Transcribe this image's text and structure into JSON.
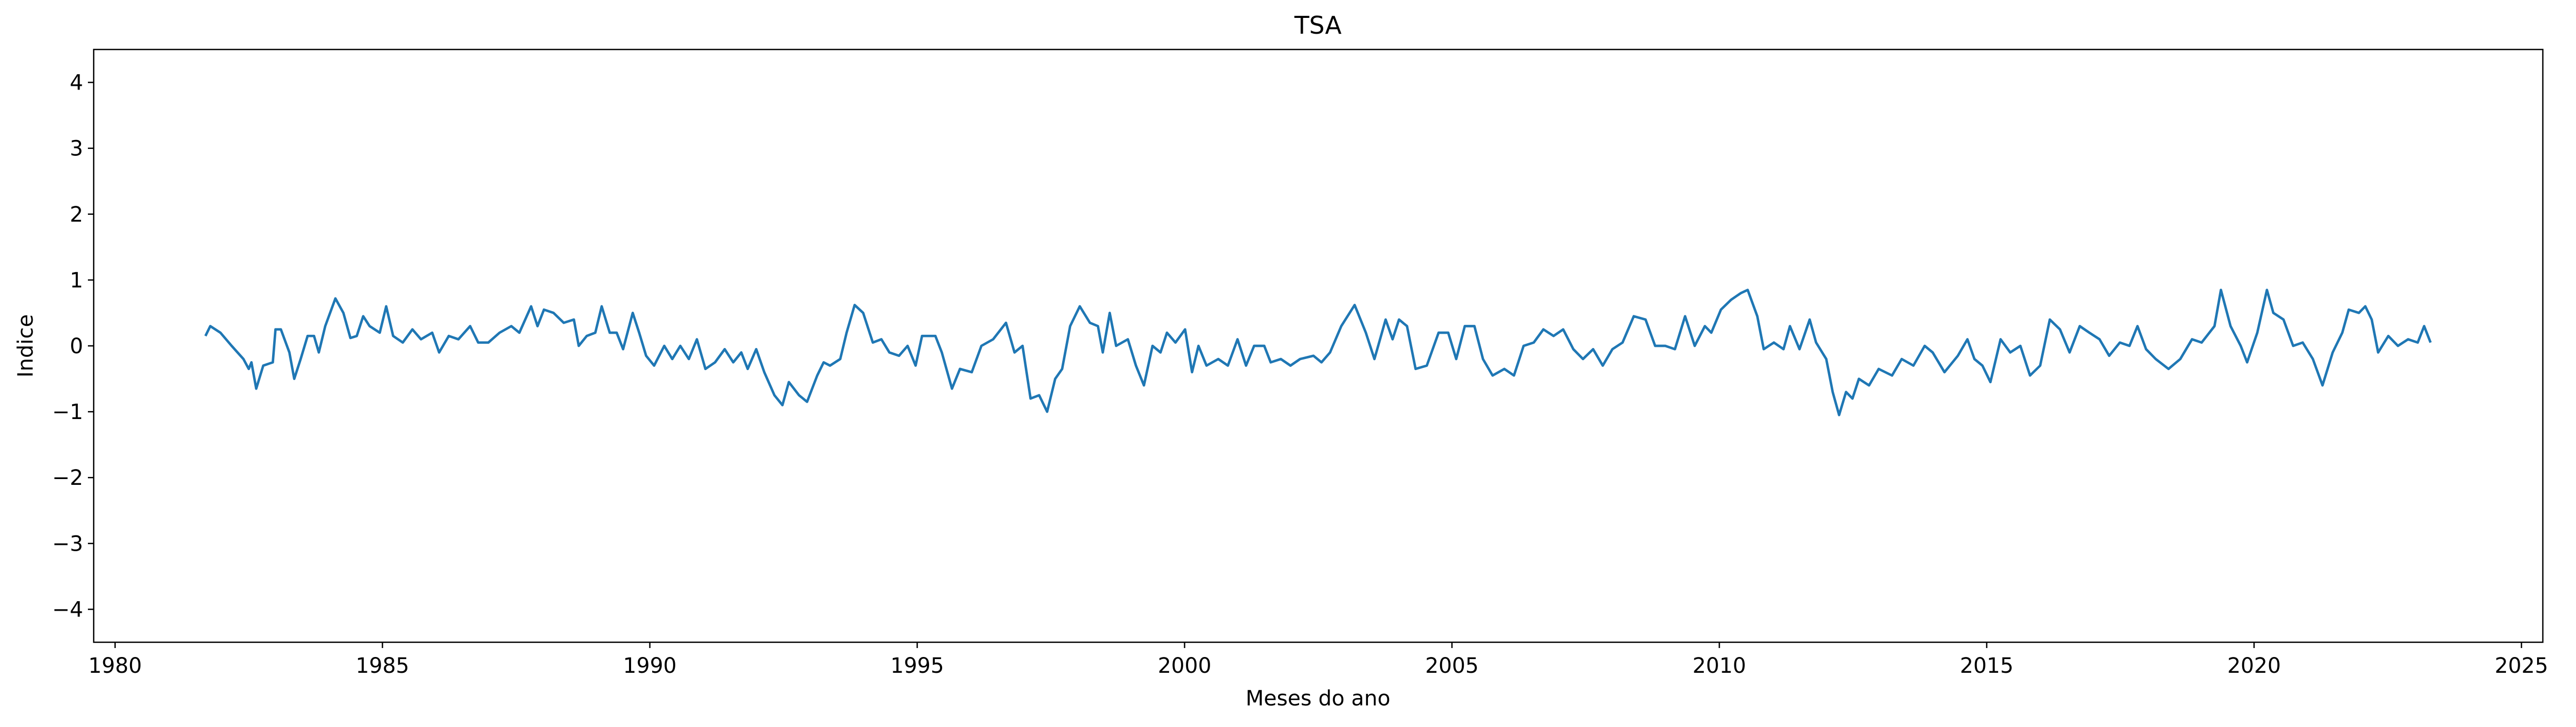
{
  "chart_data": {
    "type": "line",
    "title": "TSA",
    "xlabel": "Meses do ano",
    "ylabel": "Indice",
    "color": "#1f77b4",
    "xlim": [
      1979.6,
      2025.4
    ],
    "xticks": [
      1980,
      1985,
      1990,
      1995,
      2000,
      2005,
      2010,
      2015,
      2020,
      2025
    ],
    "ylim": [
      -4.5,
      4.5
    ],
    "yticks": [
      {
        "value": -4,
        "label": "−4"
      },
      {
        "value": -3,
        "label": "−3"
      },
      {
        "value": -2,
        "label": "−2"
      },
      {
        "value": -1,
        "label": "−1"
      },
      0,
      1,
      2,
      3,
      4
    ],
    "x": [
      1981.69,
      1981.78,
      1981.97,
      1982.18,
      1982.4,
      1982.5,
      1982.55,
      1982.64,
      1982.77,
      1982.95,
      1983.0,
      1983.1,
      1983.26,
      1983.35,
      1983.47,
      1983.6,
      1983.72,
      1983.81,
      1983.93,
      1984.12,
      1984.27,
      1984.4,
      1984.52,
      1984.64,
      1984.76,
      1984.95,
      1985.07,
      1985.2,
      1985.38,
      1985.56,
      1985.72,
      1985.93,
      1986.06,
      1986.24,
      1986.42,
      1986.64,
      1986.79,
      1986.98,
      1987.19,
      1987.41,
      1987.56,
      1987.78,
      1987.9,
      1988.02,
      1988.2,
      1988.39,
      1988.58,
      1988.67,
      1988.82,
      1988.98,
      1989.1,
      1989.25,
      1989.38,
      1989.5,
      1989.68,
      1989.8,
      1989.93,
      1990.08,
      1990.27,
      1990.42,
      1990.57,
      1990.73,
      1990.88,
      1991.04,
      1991.22,
      1991.4,
      1991.56,
      1991.71,
      1991.83,
      1991.99,
      1992.14,
      1992.33,
      1992.48,
      1992.6,
      1992.79,
      1992.94,
      1993.13,
      1993.25,
      1993.37,
      1993.56,
      1993.68,
      1993.83,
      1993.99,
      1994.17,
      1994.33,
      1994.48,
      1994.66,
      1994.82,
      1994.97,
      1995.09,
      1995.34,
      1995.46,
      1995.65,
      1995.8,
      1996.02,
      1996.2,
      1996.42,
      1996.66,
      1996.82,
      1996.97,
      1997.12,
      1997.28,
      1997.43,
      1997.58,
      1997.71,
      1997.86,
      1998.04,
      1998.23,
      1998.38,
      1998.47,
      1998.6,
      1998.72,
      1998.94,
      1999.09,
      1999.24,
      1999.4,
      1999.55,
      1999.67,
      1999.83,
      2000.01,
      2000.14,
      2000.26,
      2000.41,
      2000.63,
      2000.81,
      2000.99,
      2001.15,
      2001.3,
      2001.49,
      2001.61,
      2001.8,
      2001.98,
      2002.16,
      2002.41,
      2002.56,
      2002.72,
      2002.93,
      2003.18,
      2003.39,
      2003.55,
      2003.76,
      2003.89,
      2004.01,
      2004.16,
      2004.32,
      2004.53,
      2004.75,
      2004.93,
      2005.08,
      2005.24,
      2005.42,
      2005.58,
      2005.76,
      2005.98,
      2006.16,
      2006.34,
      2006.53,
      2006.71,
      2006.9,
      2007.08,
      2007.27,
      2007.45,
      2007.64,
      2007.82,
      2008.0,
      2008.19,
      2008.4,
      2008.62,
      2008.8,
      2008.99,
      2009.17,
      2009.36,
      2009.54,
      2009.73,
      2009.85,
      2010.03,
      2010.22,
      2010.4,
      2010.53,
      2010.71,
      2010.83,
      2011.02,
      2011.2,
      2011.32,
      2011.5,
      2011.69,
      2011.81,
      2012.0,
      2012.12,
      2012.24,
      2012.37,
      2012.49,
      2012.61,
      2012.8,
      2012.98,
      2013.23,
      2013.41,
      2013.63,
      2013.84,
      2013.99,
      2014.21,
      2014.46,
      2014.64,
      2014.77,
      2014.92,
      2015.07,
      2015.26,
      2015.44,
      2015.63,
      2015.81,
      2016.0,
      2016.18,
      2016.37,
      2016.55,
      2016.74,
      2016.92,
      2017.11,
      2017.29,
      2017.49,
      2017.67,
      2017.82,
      2017.98,
      2018.16,
      2018.4,
      2018.62,
      2018.84,
      2019.02,
      2019.26,
      2019.38,
      2019.56,
      2019.75,
      2019.87,
      2020.06,
      2020.24,
      2020.36,
      2020.55,
      2020.73,
      2020.91,
      2021.1,
      2021.28,
      2021.47,
      2021.65,
      2021.77,
      2021.96,
      2022.08,
      2022.2,
      2022.32,
      2022.51,
      2022.69,
      2022.88,
      2023.06,
      2023.18,
      2023.3
    ],
    "values": [
      0.15,
      0.3,
      0.2,
      0.0,
      -0.2,
      -0.35,
      -0.25,
      -0.65,
      -0.3,
      -0.25,
      0.25,
      0.25,
      -0.1,
      -0.5,
      -0.2,
      0.15,
      0.15,
      -0.1,
      0.3,
      0.72,
      0.5,
      0.12,
      0.15,
      0.45,
      0.3,
      0.2,
      0.6,
      0.15,
      0.05,
      0.25,
      0.1,
      0.2,
      -0.1,
      0.15,
      0.1,
      0.3,
      0.05,
      0.05,
      0.2,
      0.3,
      0.2,
      0.6,
      0.3,
      0.55,
      0.5,
      0.35,
      0.4,
      0.0,
      0.15,
      0.2,
      0.6,
      0.2,
      0.2,
      -0.05,
      0.5,
      0.2,
      -0.15,
      -0.3,
      0.0,
      -0.2,
      0.0,
      -0.2,
      0.1,
      -0.35,
      -0.25,
      -0.05,
      -0.25,
      -0.1,
      -0.35,
      -0.05,
      -0.4,
      -0.75,
      -0.9,
      -0.55,
      -0.75,
      -0.85,
      -0.45,
      -0.25,
      -0.3,
      -0.2,
      0.2,
      0.62,
      0.5,
      0.05,
      0.1,
      -0.1,
      -0.15,
      0.0,
      -0.3,
      0.15,
      0.15,
      -0.1,
      -0.65,
      -0.35,
      -0.4,
      0.0,
      0.1,
      0.35,
      -0.1,
      0.0,
      -0.8,
      -0.75,
      -1.0,
      -0.5,
      -0.35,
      0.3,
      0.6,
      0.35,
      0.3,
      -0.1,
      0.5,
      0.0,
      0.1,
      -0.3,
      -0.6,
      0.0,
      -0.1,
      0.2,
      0.05,
      0.25,
      -0.4,
      0.0,
      -0.3,
      -0.2,
      -0.3,
      0.1,
      -0.3,
      0.0,
      0.0,
      -0.25,
      -0.2,
      -0.3,
      -0.2,
      -0.15,
      -0.25,
      -0.1,
      0.3,
      0.62,
      0.2,
      -0.2,
      0.4,
      0.1,
      0.4,
      0.3,
      -0.35,
      -0.3,
      0.2,
      0.2,
      -0.2,
      0.3,
      0.3,
      -0.2,
      -0.45,
      -0.35,
      -0.45,
      0.0,
      0.05,
      0.25,
      0.15,
      0.25,
      -0.05,
      -0.2,
      -0.05,
      -0.3,
      -0.05,
      0.05,
      0.45,
      0.4,
      0.0,
      0.0,
      -0.05,
      0.45,
      0.0,
      0.3,
      0.2,
      0.55,
      0.7,
      0.8,
      0.85,
      0.45,
      -0.05,
      0.05,
      -0.05,
      0.3,
      -0.05,
      0.4,
      0.05,
      -0.2,
      -0.7,
      -1.05,
      -0.7,
      -0.8,
      -0.5,
      -0.6,
      -0.35,
      -0.45,
      -0.2,
      -0.3,
      0.0,
      -0.1,
      -0.4,
      -0.15,
      0.1,
      -0.2,
      -0.3,
      -0.55,
      0.1,
      -0.1,
      0.0,
      -0.45,
      -0.3,
      0.4,
      0.25,
      -0.1,
      0.3,
      0.2,
      0.1,
      -0.15,
      0.05,
      0.0,
      0.3,
      -0.05,
      -0.2,
      -0.35,
      -0.2,
      0.1,
      0.05,
      0.3,
      0.85,
      0.3,
      0.0,
      -0.25,
      0.2,
      0.85,
      0.5,
      0.4,
      0.0,
      0.05,
      -0.2,
      -0.6,
      -0.1,
      0.2,
      0.55,
      0.5,
      0.6,
      0.4,
      -0.1,
      0.15,
      0.0,
      0.1,
      0.05,
      0.3,
      0.05
    ]
  }
}
